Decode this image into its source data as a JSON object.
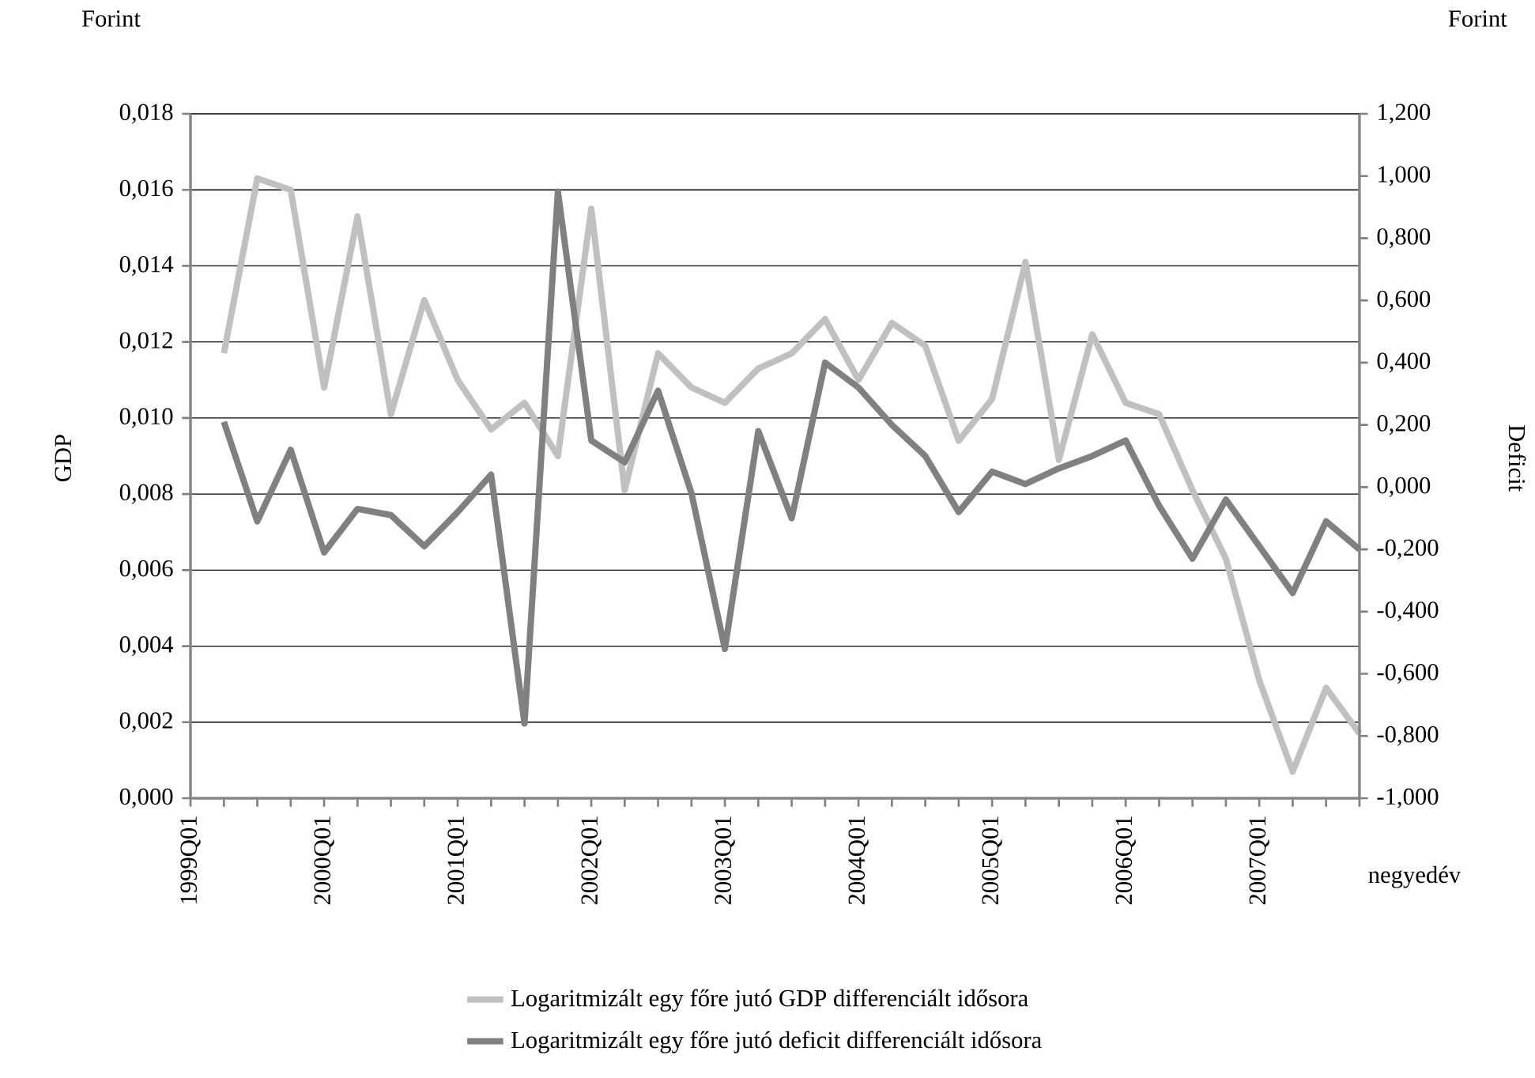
{
  "chart_data": {
    "type": "line",
    "categories": [
      "1999Q01",
      null,
      null,
      null,
      "2000Q01",
      null,
      null,
      null,
      "2001Q01",
      null,
      null,
      null,
      "2002Q01",
      null,
      null,
      null,
      "2003Q01",
      null,
      null,
      null,
      "2004Q01",
      null,
      null,
      null,
      "2005Q01",
      null,
      null,
      null,
      "2006Q01",
      null,
      null,
      null,
      "2007Q01",
      null,
      null,
      null
    ],
    "series": [
      {
        "name": "Logaritmizált egy főre jutó GDP differenciált idősora",
        "color": "#c0c0c0",
        "values": [
          null,
          0.0117,
          0.0163,
          0.016,
          0.0108,
          0.0153,
          0.0101,
          0.0131,
          0.011,
          0.0097,
          0.0104,
          0.009,
          0.0155,
          0.0081,
          0.0117,
          0.0108,
          0.0104,
          0.0113,
          0.0117,
          0.0126,
          0.011,
          0.0125,
          0.0119,
          0.0094,
          0.0105,
          0.0141,
          0.0089,
          0.0122,
          0.0104,
          0.0101,
          0.0081,
          0.0063,
          0.0031,
          0.0007,
          0.0029,
          0.0017
        ]
      },
      {
        "name": "Logaritmizált egy főre jutó deficit differenciált idősora",
        "color": "#808080",
        "axis": "y2",
        "values": [
          null,
          0.21,
          -0.11,
          0.12,
          -0.21,
          -0.07,
          -0.09,
          -0.19,
          -0.08,
          0.04,
          -0.76,
          0.95,
          0.15,
          0.08,
          0.31,
          -0.02,
          -0.52,
          0.18,
          -0.1,
          0.4,
          0.32,
          0.2,
          0.1,
          -0.08,
          0.05,
          0.01,
          0.06,
          0.1,
          0.15,
          -0.06,
          -0.23,
          -0.04,
          -0.19,
          -0.34,
          -0.11,
          -0.2
        ]
      }
    ],
    "xlabel": "negyedév",
    "ylabel": "GDP",
    "y2label": "Deficit",
    "annotations": [
      "Forint",
      "Forint"
    ],
    "ylim": [
      0,
      0.018
    ],
    "yticks": [
      {
        "value": 0,
        "label": "0,000"
      },
      {
        "value": 0.002,
        "label": "0,002"
      },
      {
        "value": 0.004,
        "label": "0,004"
      },
      {
        "value": 0.006,
        "label": "0,006"
      },
      {
        "value": 0.008,
        "label": "0,008"
      },
      {
        "value": 0.01,
        "label": "0,010"
      },
      {
        "value": 0.012,
        "label": "0,012"
      },
      {
        "value": 0.014,
        "label": "0,014"
      },
      {
        "value": 0.016,
        "label": "0,016"
      },
      {
        "value": 0.018,
        "label": "0,018"
      }
    ],
    "y2lim": [
      -1,
      1.2
    ],
    "y2ticks": [
      {
        "value": -1,
        "label": "-1,000"
      },
      {
        "value": -0.8,
        "label": "-0,800"
      },
      {
        "value": -0.6,
        "label": "-0,600"
      },
      {
        "value": -0.4,
        "label": "-0,400"
      },
      {
        "value": -0.2,
        "label": "-0,200"
      },
      {
        "value": 0,
        "label": "0,000"
      },
      {
        "value": 0.2,
        "label": "0,200"
      },
      {
        "value": 0.4,
        "label": "0,400"
      },
      {
        "value": 0.6,
        "label": "0,600"
      },
      {
        "value": 0.8,
        "label": "0,800"
      },
      {
        "value": 1,
        "label": "1,000"
      },
      {
        "value": 1.2,
        "label": "1,200"
      }
    ],
    "grid": "y",
    "legend": "bottom"
  }
}
